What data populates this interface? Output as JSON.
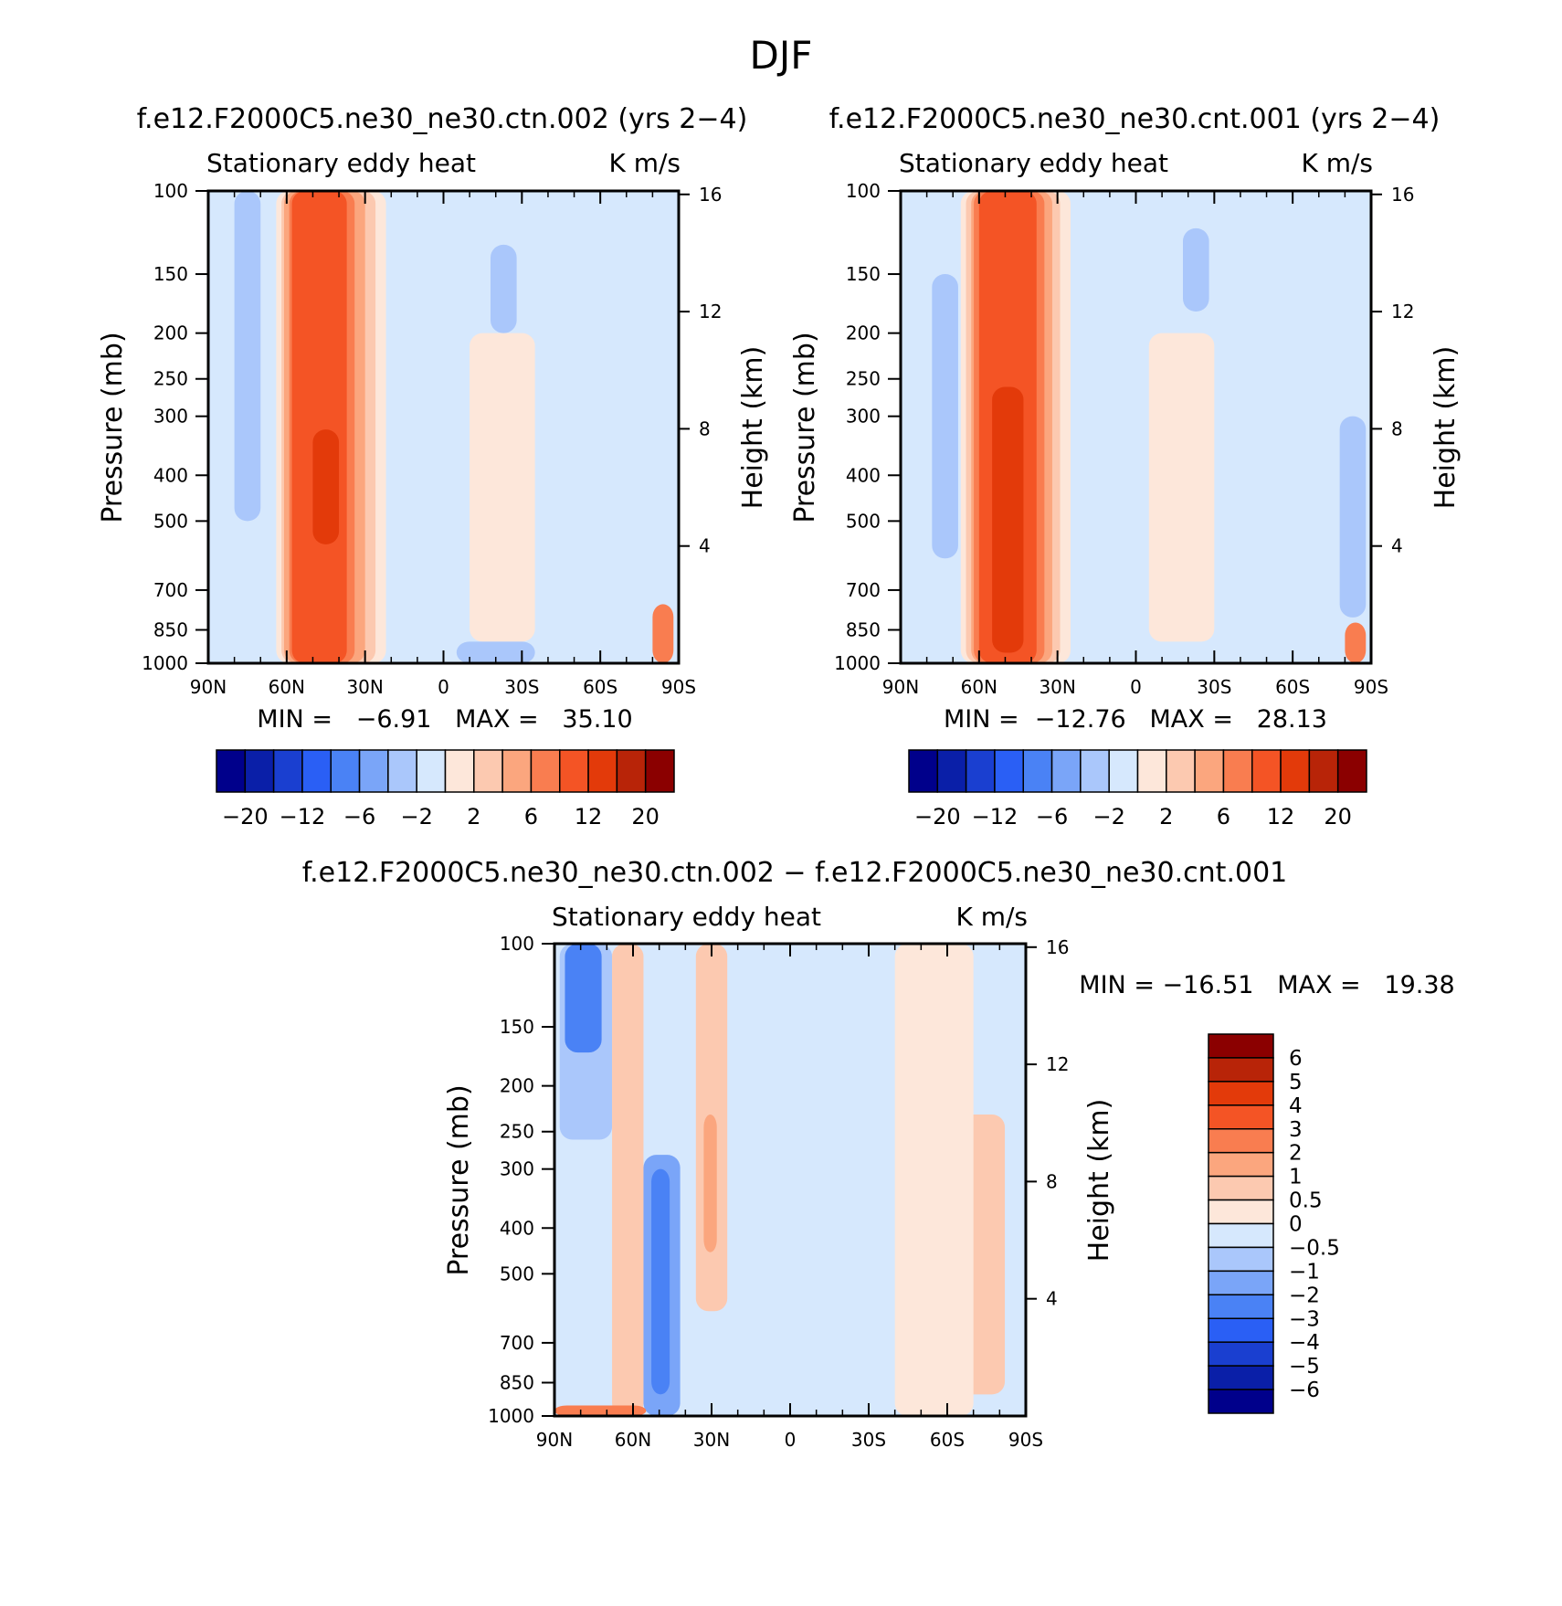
{
  "page_title": "DJF",
  "colors": {
    "abs": [
      "#00008b",
      "#0a1fa8",
      "#1a3fd0",
      "#2a5ff5",
      "#4a82f5",
      "#7aa5f8",
      "#aac7fb",
      "#d6e8fd",
      "#fde7da",
      "#fcc9b0",
      "#fba67e",
      "#f97d50",
      "#f45425",
      "#e33a0a",
      "#b82408",
      "#8b0000"
    ],
    "abs_bg": "#d6e8fd",
    "diff": [
      "#00008b",
      "#0a1fa8",
      "#1a3fd0",
      "#2a5ff5",
      "#4a82f5",
      "#7aa5f8",
      "#aac7fb",
      "#d6e8fd",
      "#fde7da",
      "#fcc9b0",
      "#fba67e",
      "#f97d50",
      "#f45425",
      "#e33a0a",
      "#b82408",
      "#8b0000"
    ]
  },
  "chart_data": [
    {
      "type": "heatmap",
      "id": "ctn",
      "title": "f.e12.F2000C5.ne30_ne30.ctn.002 (yrs 2−4)",
      "left_label": "Stationary eddy heat",
      "right_label": "K m/s",
      "ylabel": "Pressure (mb)",
      "ylabel_right": "Height (km)",
      "x_ticks": [
        "90N",
        "60N",
        "30N",
        "0",
        "30S",
        "60S",
        "90S"
      ],
      "x_range": [
        90,
        -90
      ],
      "y_ticks": [
        "100",
        "150",
        "200",
        "250",
        "300",
        "400",
        "500",
        "700",
        "850",
        "1000"
      ],
      "y_range_mb": [
        1000,
        100
      ],
      "height_ticks": [
        "4",
        "8",
        "12",
        "16"
      ],
      "min_text": "MIN =   −6.91   MAX =   35.10",
      "min": -6.91,
      "max": 35.1,
      "colorbar_labels": [
        "−20",
        "−12",
        "−6",
        "−2",
        "2",
        "6",
        "12",
        "20"
      ],
      "levels": [
        -20,
        -16,
        -12,
        -8,
        -6,
        -4,
        -2,
        0,
        2,
        4,
        6,
        8,
        12,
        16,
        20
      ]
    },
    {
      "type": "heatmap",
      "id": "cnt",
      "title": "f.e12.F2000C5.ne30_ne30.cnt.001 (yrs 2−4)",
      "left_label": "Stationary eddy heat",
      "right_label": "K m/s",
      "ylabel": "Pressure (mb)",
      "ylabel_right": "Height (km)",
      "x_ticks": [
        "90N",
        "60N",
        "30N",
        "0",
        "30S",
        "60S",
        "90S"
      ],
      "x_range": [
        90,
        -90
      ],
      "y_ticks": [
        "100",
        "150",
        "200",
        "250",
        "300",
        "400",
        "500",
        "700",
        "850",
        "1000"
      ],
      "y_range_mb": [
        1000,
        100
      ],
      "height_ticks": [
        "4",
        "8",
        "12",
        "16"
      ],
      "min_text": "MIN =  −12.76   MAX =   28.13",
      "min": -12.76,
      "max": 28.13,
      "colorbar_labels": [
        "−20",
        "−12",
        "−6",
        "−2",
        "2",
        "6",
        "12",
        "20"
      ],
      "levels": [
        -20,
        -16,
        -12,
        -8,
        -6,
        -4,
        -2,
        0,
        2,
        4,
        6,
        8,
        12,
        16,
        20
      ]
    },
    {
      "type": "heatmap",
      "id": "diff",
      "title": "f.e12.F2000C5.ne30_ne30.ctn.002 − f.e12.F2000C5.ne30_ne30.cnt.001",
      "left_label": "Stationary eddy heat",
      "right_label": "K m/s",
      "ylabel": "Pressure (mb)",
      "ylabel_right": "Height (km)",
      "x_ticks": [
        "90N",
        "60N",
        "30N",
        "0",
        "30S",
        "60S",
        "90S"
      ],
      "x_range": [
        90,
        -90
      ],
      "y_ticks": [
        "100",
        "150",
        "200",
        "250",
        "300",
        "400",
        "500",
        "700",
        "850",
        "1000"
      ],
      "y_range_mb": [
        1000,
        100
      ],
      "height_ticks": [
        "4",
        "8",
        "12",
        "16"
      ],
      "min_text": "MIN = −16.51   MAX =   19.38",
      "min": -16.51,
      "max": 19.38,
      "colorbar_labels": [
        "6",
        "5",
        "4",
        "3",
        "2",
        "1",
        "0.5",
        "0",
        "−0.5",
        "−1",
        "−2",
        "−3",
        "−4",
        "−5",
        "−6"
      ],
      "levels": [
        -6,
        -5,
        -4,
        -3,
        -2,
        -1,
        -0.5,
        0,
        0.5,
        1,
        2,
        3,
        4,
        5,
        6
      ]
    }
  ]
}
